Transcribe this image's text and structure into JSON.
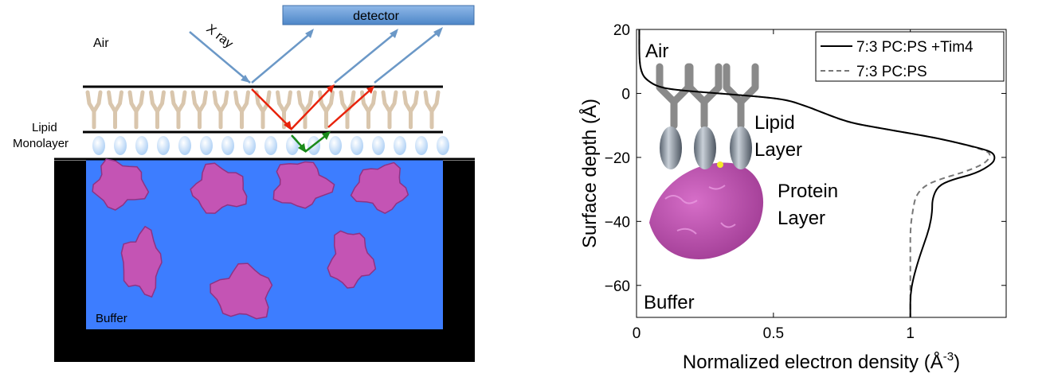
{
  "schematic": {
    "detector_label": "detector",
    "xray_label": "X ray",
    "air_label": "Air",
    "lipid_label_line1": "Lipid",
    "lipid_label_line2": "Monolayer",
    "buffer_label": "Buffer",
    "colors": {
      "buffer": "#3d7dff",
      "trough": "#000000",
      "beam": "#6b98c7",
      "reflection_red": "#e8230c",
      "reflection_green": "#1a8a1a",
      "protein": "#c454b4",
      "lipid_tail": "#d9c6ad",
      "lipid_head": "#cfe6ff"
    }
  },
  "chart_data": {
    "type": "line",
    "xlabel": "Normalized electron density (Å",
    "xlabel_sup": "-3",
    "xlabel_tail": ")",
    "ylabel": "Surface depth (Å)",
    "xlim": [
      0,
      1.35
    ],
    "ylim": [
      -70,
      20
    ],
    "xticks": [
      0,
      0.5,
      1
    ],
    "xtick_labels": [
      "0",
      "0.5",
      "1"
    ],
    "yticks": [
      20,
      0,
      -20,
      -40,
      -60
    ],
    "ytick_labels": [
      "20",
      "0",
      "−20",
      "−40",
      "−60"
    ],
    "grid": false,
    "legend_position": "top-right",
    "annotations": {
      "air": "Air",
      "lipid_line1": "Lipid",
      "lipid_line2": "Layer",
      "protein_line1": "Protein",
      "protein_line2": "Layer",
      "buffer": "Buffer"
    },
    "series": [
      {
        "name": "7:3 PC:PS +Tim4",
        "style": "solid",
        "color": "#000000",
        "x": [
          0.01,
          0.01,
          0.02,
          0.04,
          0.08,
          0.15,
          0.3,
          0.45,
          0.55,
          0.62,
          0.68,
          0.74,
          0.8,
          0.9,
          1.0,
          1.1,
          1.2,
          1.27,
          1.3,
          1.31,
          1.3,
          1.24,
          1.15,
          1.1,
          1.08,
          1.08,
          1.07,
          1.05,
          1.03,
          1.01,
          1.0,
          1.0,
          1.0
        ],
        "y": [
          20,
          10,
          6,
          4,
          2,
          1,
          0,
          -1,
          -2,
          -4,
          -6,
          -8,
          -9.5,
          -11,
          -12.5,
          -14,
          -16,
          -17.5,
          -18.5,
          -20,
          -22,
          -25,
          -27,
          -29,
          -33,
          -37,
          -42,
          -47,
          -52,
          -58,
          -63,
          -68,
          -70
        ]
      },
      {
        "name": "7:3 PC:PS",
        "style": "dashed",
        "color": "#777777",
        "x": [
          0.01,
          0.01,
          0.02,
          0.04,
          0.08,
          0.15,
          0.3,
          0.45,
          0.55,
          0.62,
          0.68,
          0.74,
          0.8,
          0.9,
          1.0,
          1.1,
          1.2,
          1.26,
          1.29,
          1.29,
          1.27,
          1.2,
          1.1,
          1.05,
          1.02,
          1.01,
          1.0,
          1.0,
          1.0,
          1.0,
          1.0
        ],
        "y": [
          20,
          10,
          6,
          4,
          2,
          1,
          0,
          -1,
          -2,
          -4,
          -6,
          -8,
          -9.5,
          -11,
          -12.5,
          -14,
          -16,
          -17.5,
          -18.5,
          -20,
          -22,
          -24.5,
          -27,
          -29,
          -32,
          -36,
          -42,
          -50,
          -58,
          -64,
          -70
        ]
      }
    ]
  }
}
